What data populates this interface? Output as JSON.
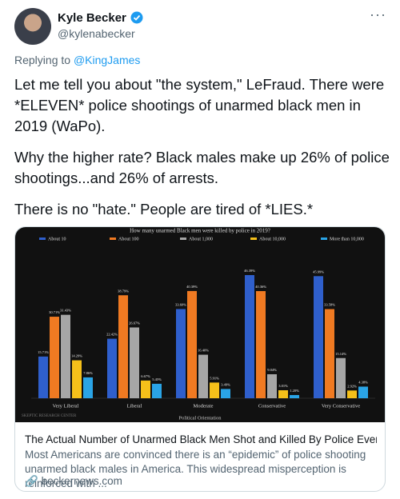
{
  "author": {
    "name": "Kyle Becker",
    "handle": "@kylenabecker"
  },
  "reply": {
    "prefix": "Replying to",
    "mention": "@KingJames"
  },
  "tweet_text": [
    "Let me tell you about \"the system,\" LeFraud. There were *ELEVEN* police shootings of unarmed black men in 2019 (WaPo).",
    "Why the higher rate? Black males make up 26% of police shootings...and 26% of arrests.",
    "There is no \"hate.\" People are tired of *LIES.*"
  ],
  "card": {
    "chart_data": {
      "type": "bar",
      "title": "How many unarmed Black men were killed by police in 2019?",
      "x_label": "Political Orientation",
      "source": "SKEPTIC RESEARCH CENTER",
      "categories": [
        "Very Liberal",
        "Liberal",
        "Moderate",
        "Conservative",
        "Very Conservative"
      ],
      "series": [
        {
          "name": "About 10",
          "color": "#2f5fcc",
          "values": [
            15.71,
            22.42,
            33.6,
            46.39,
            45.99
          ],
          "value_labels": [
            "15.71%",
            "22.42%",
            "33.60%",
            "46.39%",
            "45.99%"
          ]
        },
        {
          "name": "About 100",
          "color": "#f07a22",
          "values": [
            30.71,
            38.79,
            40.39,
            40.36,
            33.58
          ],
          "value_labels": [
            "30.71%",
            "38.79%",
            "40.39%",
            "40.36%",
            "33.58%"
          ]
        },
        {
          "name": "About 1,000",
          "color": "#a6a6a6",
          "values": [
            31.43,
            26.67,
            16.4,
            9.04,
            15.14
          ],
          "value_labels": [
            "31.43%",
            "26.67%",
            "16.40%",
            "9.04%",
            "15.14%"
          ]
        },
        {
          "name": "About 10,000",
          "color": "#f5c01a",
          "values": [
            14.29,
            6.67,
            5.91,
            3.01,
            2.92
          ],
          "value_labels": [
            "14.29%",
            "6.67%",
            "5.91%",
            "3.01%",
            "2.92%"
          ]
        },
        {
          "name": "More than 10,000",
          "color": "#2aa4e6",
          "values": [
            7.86,
            5.45,
            3.49,
            1.2,
            4.38
          ],
          "value_labels": [
            "7.86%",
            "5.45%",
            "3.49%",
            "1.20%",
            "4.38%"
          ]
        }
      ]
    },
    "title": "The Actual Number of Unarmed Black Men Shot and Killed By Police Every Year ...",
    "description": "Most Americans are convinced there is an “epidemic” of police shooting unarmed black males in America. This widespread misperception is reinforced with ...",
    "domain": "beckernews.com"
  }
}
